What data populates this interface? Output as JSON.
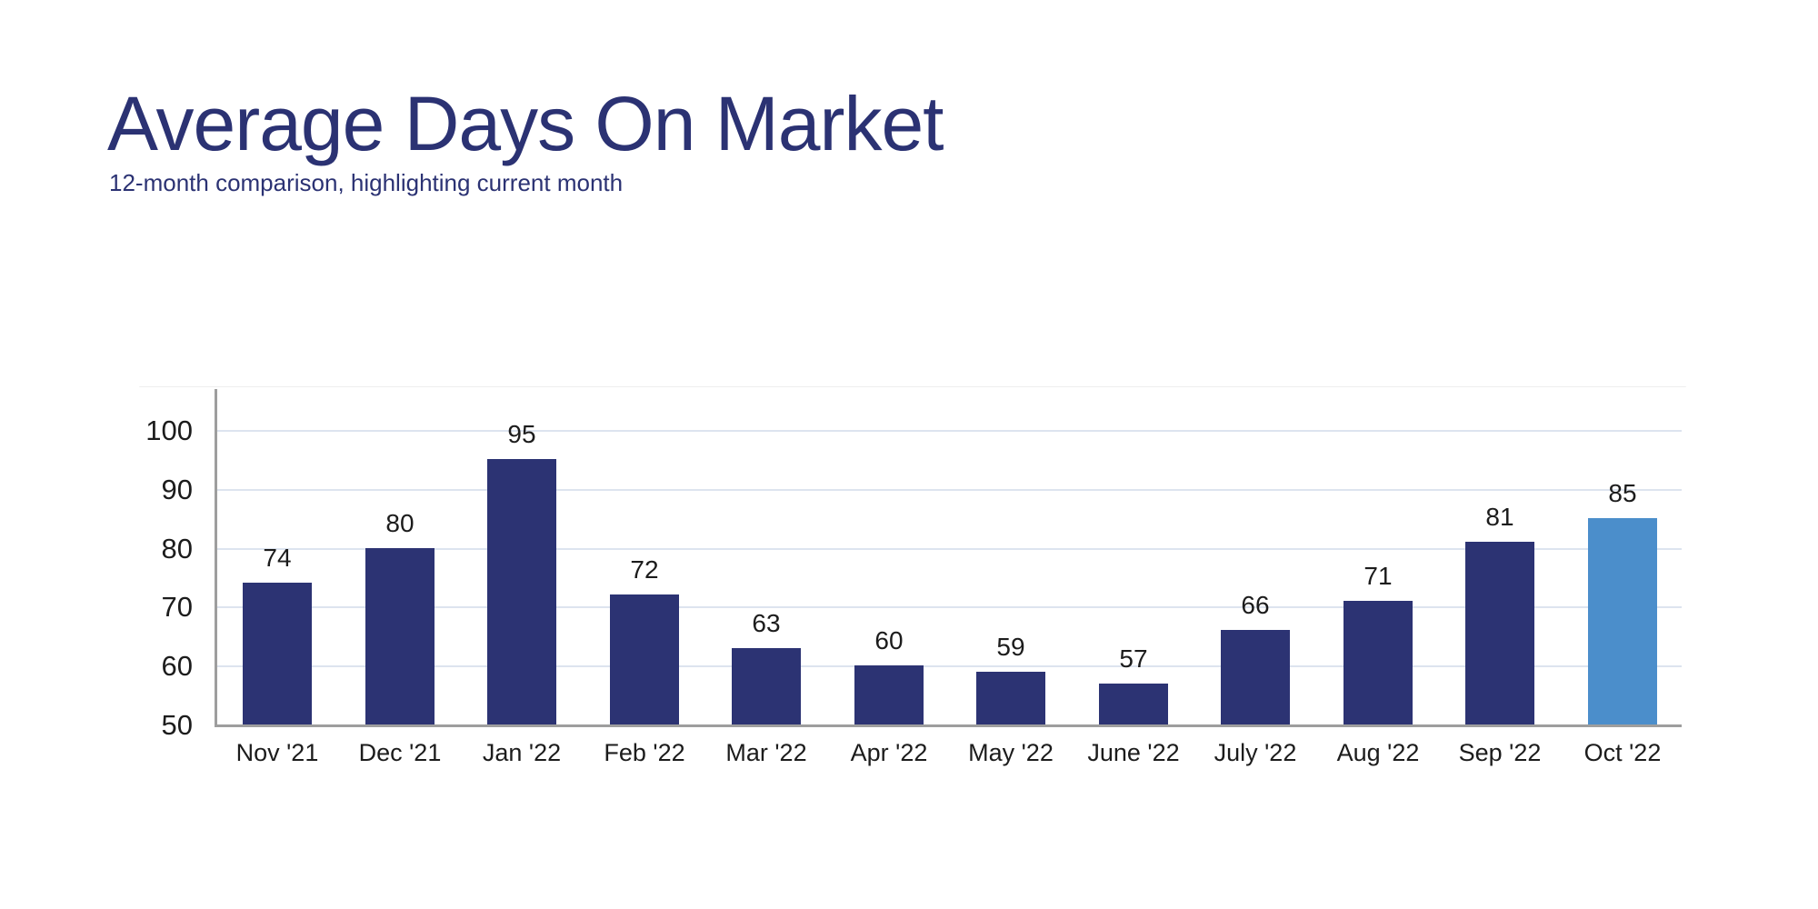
{
  "header": {
    "title": "Average Days On Market",
    "subtitle": "12-month comparison, highlighting current month",
    "text_color": "#2b3273"
  },
  "chart_data": {
    "type": "bar",
    "title": "Average Days On Market",
    "subtitle": "12-month comparison, highlighting current month",
    "categories": [
      "Nov '21",
      "Dec '21",
      "Jan '22",
      "Feb '22",
      "Mar '22",
      "Apr '22",
      "May '22",
      "June '22",
      "July '22",
      "Aug '22",
      "Sep '22",
      "Oct '22"
    ],
    "values": [
      74,
      80,
      95,
      72,
      63,
      60,
      59,
      57,
      66,
      71,
      81,
      85
    ],
    "highlight_index": 11,
    "highlighted_category": "Oct '22",
    "xlabel": "",
    "ylabel": "",
    "ylim": [
      50,
      106
    ],
    "yticks": [
      50,
      60,
      70,
      80,
      90,
      100
    ],
    "grid": true,
    "data_labels": true,
    "legend": "none",
    "colors": {
      "bar": "#2c3373",
      "highlight": "#4b8ecb",
      "gridline": "#dde4ef",
      "axis": "#9e9e9e",
      "tick_label": "#1c1c1c",
      "value_label": "#1c1c1c"
    }
  }
}
